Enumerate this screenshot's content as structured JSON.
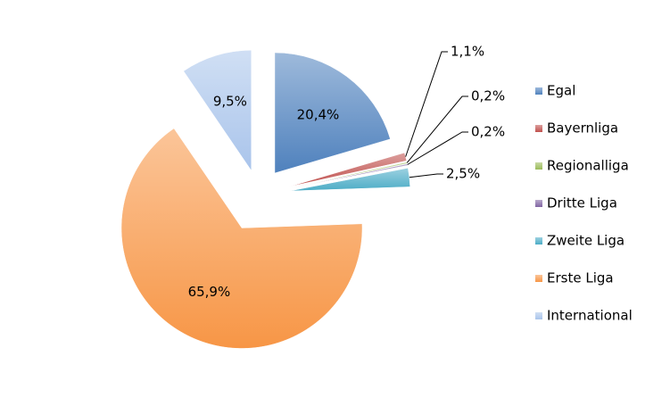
{
  "chart_data": {
    "type": "pie",
    "categories": [
      "Egal",
      "Bayernliga",
      "Regionalliga",
      "Dritte Liga",
      "Zweite Liga",
      "Erste Liga",
      "International"
    ],
    "values": [
      20.4,
      1.1,
      0.2,
      0.2,
      2.5,
      65.9,
      9.5
    ],
    "value_labels": [
      "20,4%",
      "1,1%",
      "0,2%",
      "0,2%",
      "2,5%",
      "65,9%",
      "9,5%"
    ],
    "colors": [
      "#4f81bd",
      "#c0504d",
      "#9bbb59",
      "#8064a2",
      "#4bacc6",
      "#f79646",
      "#a9c4eb"
    ],
    "legend": "right"
  }
}
